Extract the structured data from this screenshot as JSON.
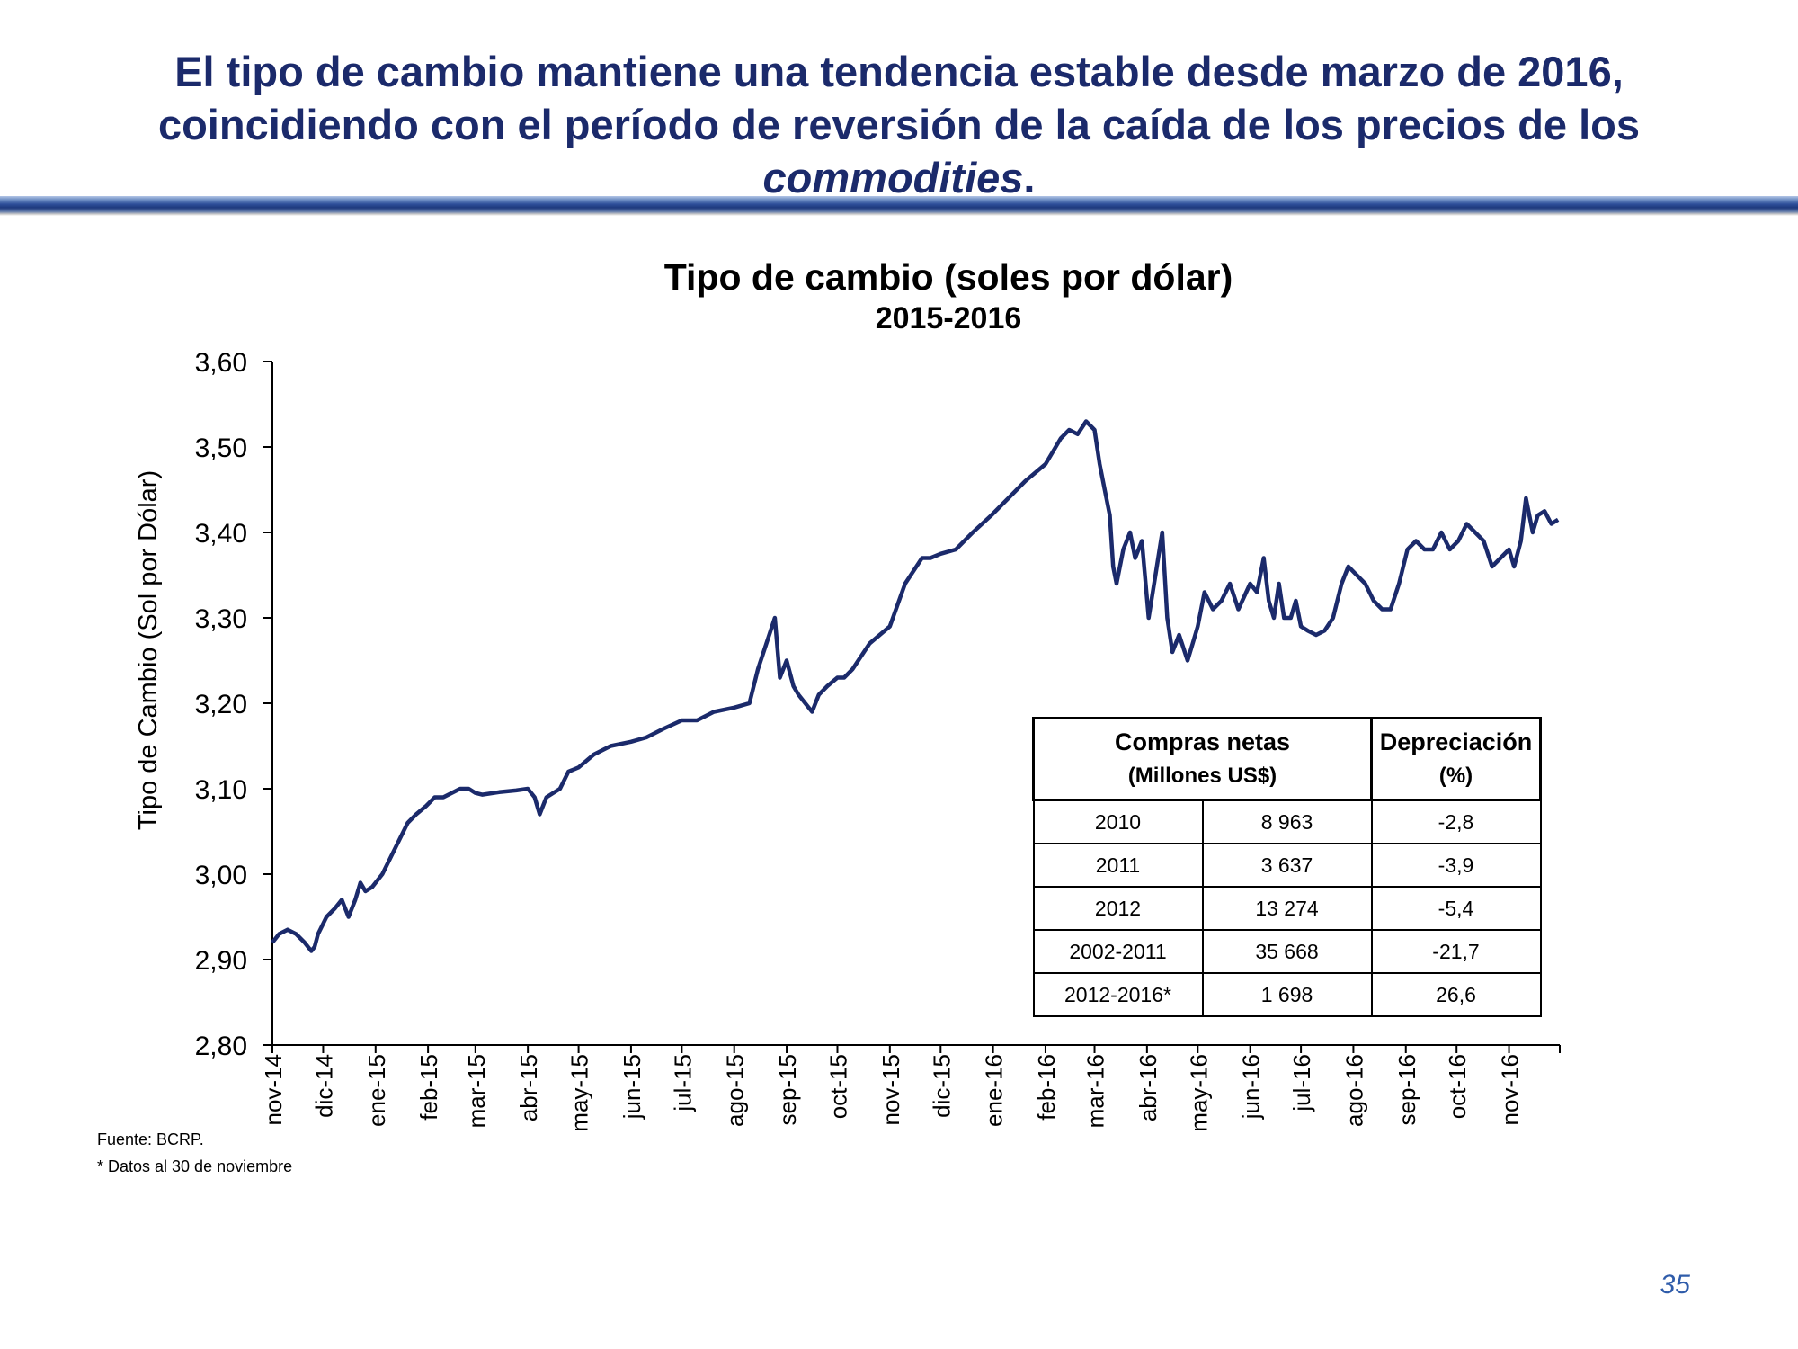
{
  "slide": {
    "headline_line1": "El tipo de cambio mantiene una tendencia estable desde marzo de 2016,",
    "headline_line2": "coincidiendo con el período de reversión de la caída de los precios de los",
    "headline_italic": "commodities",
    "headline_end": ".",
    "page_number": "35",
    "source": "Fuente: BCRP.",
    "note": "* Datos al 30 de noviembre"
  },
  "chart_data": {
    "type": "line",
    "title": "Tipo de cambio (soles por dólar)",
    "subtitle": "2015-2016",
    "ylabel": "Tipo de Cambio (Sol por Dólar)",
    "xlabel": "",
    "ylim": [
      2.8,
      3.6
    ],
    "yticks": [
      "2,80",
      "2,90",
      "3,00",
      "3,10",
      "3,20",
      "3,30",
      "3,40",
      "3,50",
      "3,60"
    ],
    "xticks": [
      "nov-14",
      "dic-14",
      "ene-15",
      "feb-15",
      "mar-15",
      "abr-15",
      "may-15",
      "jun-15",
      "jul-15",
      "ago-15",
      "sep-15",
      "oct-15",
      "nov-15",
      "dic-15",
      "ene-16",
      "feb-16",
      "mar-16",
      "abr-16",
      "may-16",
      "jun-16",
      "jul-16",
      "ago-16",
      "sep-16",
      "oct-16",
      "nov-16"
    ],
    "grid": false,
    "line_color": "#1b2a6b",
    "series": [
      {
        "x": [
          "2014-11-01",
          "2014-11-05",
          "2014-11-10",
          "2014-11-15",
          "2014-11-20",
          "2014-11-24",
          "2014-11-26",
          "2014-11-28",
          "2014-12-03",
          "2014-12-08",
          "2014-12-12",
          "2014-12-16",
          "2014-12-20",
          "2014-12-23",
          "2014-12-26",
          "2014-12-30",
          "2015-01-05",
          "2015-01-10",
          "2015-01-15",
          "2015-01-20",
          "2015-01-25",
          "2015-01-31",
          "2015-02-05",
          "2015-02-10",
          "2015-02-15",
          "2015-02-20",
          "2015-02-25",
          "2015-03-01",
          "2015-03-05",
          "2015-03-15",
          "2015-03-25",
          "2015-04-01",
          "2015-04-05",
          "2015-04-08",
          "2015-04-12",
          "2015-04-20",
          "2015-04-25",
          "2015-05-01",
          "2015-05-10",
          "2015-05-20",
          "2015-06-01",
          "2015-06-10",
          "2015-06-20",
          "2015-07-01",
          "2015-07-10",
          "2015-07-20",
          "2015-08-01",
          "2015-08-10",
          "2015-08-15",
          "2015-08-20",
          "2015-08-25",
          "2015-08-28",
          "2015-09-01",
          "2015-09-05",
          "2015-09-08",
          "2015-09-12",
          "2015-09-16",
          "2015-09-20",
          "2015-09-25",
          "2015-10-01",
          "2015-10-05",
          "2015-10-10",
          "2015-10-20",
          "2015-11-01",
          "2015-11-10",
          "2015-11-20",
          "2015-11-25",
          "2015-12-01",
          "2015-12-10",
          "2015-12-20",
          "2015-12-31",
          "2016-01-10",
          "2016-01-20",
          "2016-02-01",
          "2016-02-10",
          "2016-02-15",
          "2016-02-20",
          "2016-02-25",
          "2016-03-01",
          "2016-03-04",
          "2016-03-07",
          "2016-03-10",
          "2016-03-12",
          "2016-03-14",
          "2016-03-18",
          "2016-03-22",
          "2016-03-25",
          "2016-03-29",
          "2016-04-02",
          "2016-04-06",
          "2016-04-10",
          "2016-04-13",
          "2016-04-16",
          "2016-04-20",
          "2016-04-25",
          "2016-04-28",
          "2016-05-01",
          "2016-05-05",
          "2016-05-10",
          "2016-05-15",
          "2016-05-20",
          "2016-05-25",
          "2016-06-01",
          "2016-06-05",
          "2016-06-09",
          "2016-06-12",
          "2016-06-15",
          "2016-06-18",
          "2016-06-21",
          "2016-06-25",
          "2016-06-28",
          "2016-07-01",
          "2016-07-05",
          "2016-07-10",
          "2016-07-15",
          "2016-07-20",
          "2016-07-25",
          "2016-07-29",
          "2016-08-03",
          "2016-08-08",
          "2016-08-13",
          "2016-08-18",
          "2016-08-23",
          "2016-08-28",
          "2016-09-02",
          "2016-09-07",
          "2016-09-12",
          "2016-09-17",
          "2016-09-22",
          "2016-09-27",
          "2016-10-02",
          "2016-10-07",
          "2016-10-12",
          "2016-10-17",
          "2016-10-22",
          "2016-10-27",
          "2016-11-01",
          "2016-11-04",
          "2016-11-08",
          "2016-11-11",
          "2016-11-15",
          "2016-11-18",
          "2016-11-22",
          "2016-11-26",
          "2016-11-30"
        ],
        "y": [
          2.92,
          2.93,
          2.935,
          2.93,
          2.92,
          2.91,
          2.915,
          2.93,
          2.95,
          2.96,
          2.97,
          2.95,
          2.97,
          2.99,
          2.98,
          2.985,
          3.0,
          3.02,
          3.04,
          3.06,
          3.07,
          3.08,
          3.09,
          3.09,
          3.095,
          3.1,
          3.1,
          3.095,
          3.093,
          3.096,
          3.098,
          3.1,
          3.09,
          3.07,
          3.09,
          3.1,
          3.12,
          3.125,
          3.14,
          3.15,
          3.155,
          3.16,
          3.17,
          3.18,
          3.18,
          3.19,
          3.195,
          3.2,
          3.24,
          3.27,
          3.3,
          3.23,
          3.25,
          3.22,
          3.21,
          3.2,
          3.19,
          3.21,
          3.22,
          3.23,
          3.23,
          3.24,
          3.27,
          3.29,
          3.34,
          3.37,
          3.37,
          3.375,
          3.38,
          3.4,
          3.42,
          3.44,
          3.46,
          3.48,
          3.51,
          3.52,
          3.515,
          3.53,
          3.52,
          3.48,
          3.45,
          3.42,
          3.36,
          3.34,
          3.38,
          3.4,
          3.37,
          3.39,
          3.3,
          3.35,
          3.4,
          3.3,
          3.26,
          3.28,
          3.25,
          3.27,
          3.29,
          3.33,
          3.31,
          3.32,
          3.34,
          3.31,
          3.34,
          3.33,
          3.37,
          3.32,
          3.3,
          3.34,
          3.3,
          3.3,
          3.32,
          3.29,
          3.285,
          3.28,
          3.285,
          3.3,
          3.34,
          3.36,
          3.35,
          3.34,
          3.32,
          3.31,
          3.31,
          3.34,
          3.38,
          3.39,
          3.38,
          3.38,
          3.4,
          3.38,
          3.39,
          3.41,
          3.4,
          3.39,
          3.36,
          3.37,
          3.38,
          3.36,
          3.39,
          3.44,
          3.4,
          3.42,
          3.425,
          3.41,
          3.415
        ]
      }
    ]
  },
  "table": {
    "header1_main": "Compras netas",
    "header1_sub": "(Millones US$)",
    "header2_main": "Depreciación",
    "header2_sub": "(%)",
    "rows": [
      {
        "period": "2010",
        "compras": "8 963",
        "depreciacion": "-2,8"
      },
      {
        "period": "2011",
        "compras": "3 637",
        "depreciacion": "-3,9"
      },
      {
        "period": "2012",
        "compras": "13 274",
        "depreciacion": "-5,4"
      },
      {
        "period": "2002-2011",
        "compras": "35 668",
        "depreciacion": "-21,7"
      },
      {
        "period": "2012-2016*",
        "compras": "1 698",
        "depreciacion": "26,6"
      }
    ]
  }
}
